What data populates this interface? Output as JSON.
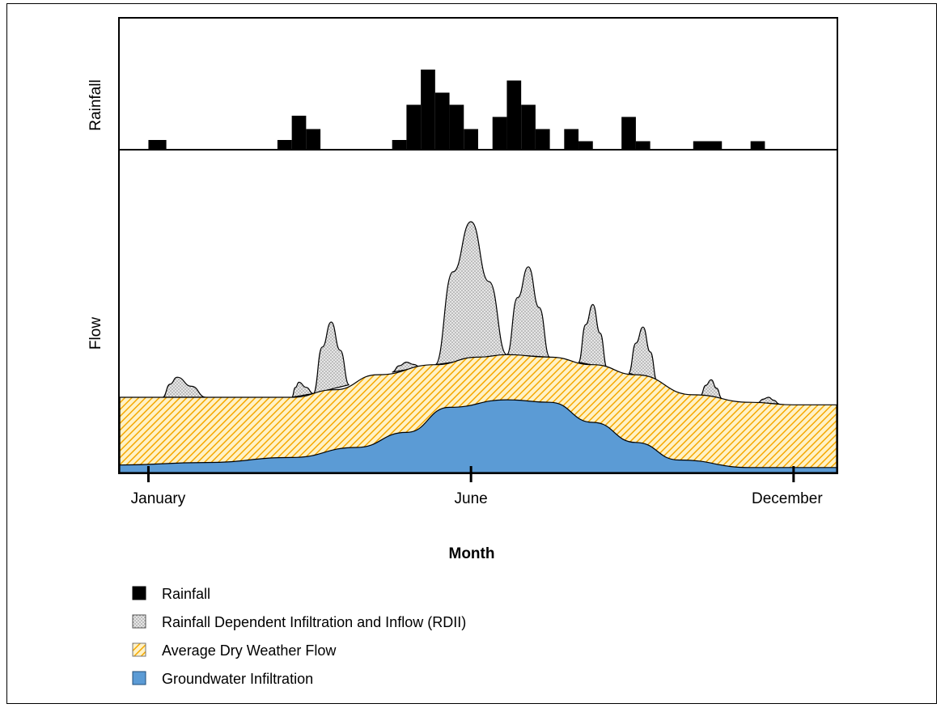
{
  "chart_data": {
    "type": "area",
    "panels": {
      "rainfall": {
        "ylabel": "Rainfall"
      },
      "flow": {
        "ylabel": "Flow"
      }
    },
    "xlabel": "Month",
    "x_ticks": [
      {
        "label": "January",
        "x": 0.04
      },
      {
        "label": "June",
        "x": 0.49
      },
      {
        "label": "December",
        "x": 0.94
      }
    ],
    "rainfall_bars": [
      {
        "x0": 0.04,
        "x1": 0.065,
        "h": 0.08
      },
      {
        "x0": 0.22,
        "x1": 0.24,
        "h": 0.08
      },
      {
        "x0": 0.24,
        "x1": 0.26,
        "h": 0.28
      },
      {
        "x0": 0.26,
        "x1": 0.28,
        "h": 0.17
      },
      {
        "x0": 0.38,
        "x1": 0.4,
        "h": 0.08
      },
      {
        "x0": 0.4,
        "x1": 0.42,
        "h": 0.37
      },
      {
        "x0": 0.42,
        "x1": 0.44,
        "h": 0.66
      },
      {
        "x0": 0.44,
        "x1": 0.46,
        "h": 0.47
      },
      {
        "x0": 0.46,
        "x1": 0.48,
        "h": 0.37
      },
      {
        "x0": 0.48,
        "x1": 0.5,
        "h": 0.17
      },
      {
        "x0": 0.52,
        "x1": 0.54,
        "h": 0.27
      },
      {
        "x0": 0.54,
        "x1": 0.56,
        "h": 0.57
      },
      {
        "x0": 0.56,
        "x1": 0.58,
        "h": 0.37
      },
      {
        "x0": 0.58,
        "x1": 0.6,
        "h": 0.17
      },
      {
        "x0": 0.62,
        "x1": 0.64,
        "h": 0.17
      },
      {
        "x0": 0.64,
        "x1": 0.66,
        "h": 0.07
      },
      {
        "x0": 0.7,
        "x1": 0.72,
        "h": 0.27
      },
      {
        "x0": 0.72,
        "x1": 0.74,
        "h": 0.07
      },
      {
        "x0": 0.8,
        "x1": 0.84,
        "h": 0.07
      },
      {
        "x0": 0.88,
        "x1": 0.9,
        "h": 0.07
      }
    ],
    "groundwater": [
      [
        0,
        0.03
      ],
      [
        0.12,
        0.04
      ],
      [
        0.24,
        0.06
      ],
      [
        0.33,
        0.1
      ],
      [
        0.4,
        0.16
      ],
      [
        0.46,
        0.26
      ],
      [
        0.54,
        0.29
      ],
      [
        0.6,
        0.28
      ],
      [
        0.66,
        0.2
      ],
      [
        0.72,
        0.12
      ],
      [
        0.78,
        0.05
      ],
      [
        0.88,
        0.02
      ],
      [
        1,
        0.02
      ]
    ],
    "dry_weather_top": [
      [
        0,
        0.3
      ],
      [
        0.12,
        0.3
      ],
      [
        0.24,
        0.3
      ],
      [
        0.3,
        0.33
      ],
      [
        0.36,
        0.39
      ],
      [
        0.44,
        0.43
      ],
      [
        0.5,
        0.46
      ],
      [
        0.54,
        0.47
      ],
      [
        0.6,
        0.46
      ],
      [
        0.66,
        0.43
      ],
      [
        0.72,
        0.39
      ],
      [
        0.8,
        0.31
      ],
      [
        0.88,
        0.28
      ],
      [
        0.94,
        0.27
      ],
      [
        1,
        0.27
      ]
    ],
    "rdii_peaks": [
      {
        "x0": 0.06,
        "x1": 0.12,
        "peak_x": 0.08,
        "peak": 0.38
      },
      {
        "x0": 0.24,
        "x1": 0.27,
        "peak_x": 0.25,
        "peak": 0.36
      },
      {
        "x0": 0.27,
        "x1": 0.32,
        "peak_x": 0.295,
        "peak": 0.6
      },
      {
        "x0": 0.38,
        "x1": 0.42,
        "peak_x": 0.4,
        "peak": 0.44
      },
      {
        "x0": 0.44,
        "x1": 0.54,
        "peak_x": 0.49,
        "peak": 1.0
      },
      {
        "x0": 0.54,
        "x1": 0.6,
        "peak_x": 0.57,
        "peak": 0.82
      },
      {
        "x0": 0.64,
        "x1": 0.68,
        "peak_x": 0.66,
        "peak": 0.67
      },
      {
        "x0": 0.71,
        "x1": 0.75,
        "peak_x": 0.73,
        "peak": 0.58
      },
      {
        "x0": 0.81,
        "x1": 0.84,
        "peak_x": 0.825,
        "peak": 0.37
      },
      {
        "x0": 0.89,
        "x1": 0.92,
        "peak_x": 0.905,
        "peak": 0.3
      }
    ],
    "legend": [
      {
        "label": "Rainfall",
        "style": "solid-black"
      },
      {
        "label": "Rainfall Dependent Infiltration and Inflow (RDII)",
        "style": "gray-stipple"
      },
      {
        "label": "Average Dry Weather Flow",
        "style": "yellow-hatch"
      },
      {
        "label": "Groundwater Infiltration",
        "style": "blue-solid"
      }
    ],
    "colors": {
      "rainfall": "#000000",
      "rdii": "#d9d9d9",
      "dry_weather": "#fcd36b",
      "dry_weather_hatch": "#f5a800",
      "groundwater": "#5b9bd5"
    },
    "legend_position": "bottom-left",
    "grid": false
  }
}
